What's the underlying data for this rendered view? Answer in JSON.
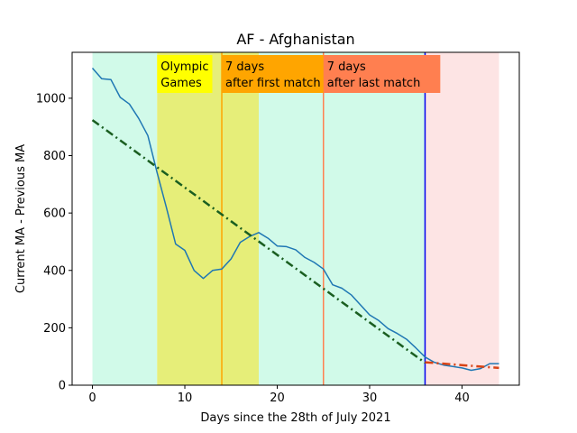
{
  "chart_data": {
    "type": "line",
    "title": "AF - Afghanistan",
    "xlabel": "Days since the 28th of July 2021",
    "ylabel": "Current MA - Previous MA",
    "xlim": [
      -2.2,
      46.2
    ],
    "ylim": [
      0,
      1160
    ],
    "xticks": [
      0,
      10,
      20,
      30,
      40
    ],
    "yticks": [
      0,
      200,
      400,
      600,
      800,
      1000
    ],
    "grid": false,
    "background_spans": [
      {
        "name": "before-olympics",
        "x0": 0,
        "x1": 7,
        "color": "#d1fae9"
      },
      {
        "name": "olympic-games",
        "x0": 7,
        "x1": 18,
        "color": "#e6ee79"
      },
      {
        "name": "after-olympics",
        "x0": 18,
        "x1": 36,
        "color": "#d1fae9"
      },
      {
        "name": "post-period",
        "x0": 36,
        "x1": 44,
        "color": "#fde4e4"
      }
    ],
    "vertical_lines": [
      {
        "name": "first-match-line",
        "x": 14,
        "color": "#ffa500"
      },
      {
        "name": "last-match-line",
        "x": 25,
        "color": "#ff7f50"
      },
      {
        "name": "cutoff-line",
        "x": 36,
        "color": "#0000ee"
      }
    ],
    "annotations": [
      {
        "name": "olympic-games-label",
        "x": 7,
        "lines": [
          "Olympic",
          "Games"
        ],
        "box_color": "#ffff00"
      },
      {
        "name": "first-match-label",
        "x": 14,
        "lines": [
          "7 days",
          "after first match"
        ],
        "box_color": "#ffa500"
      },
      {
        "name": "last-match-label",
        "x": 25,
        "lines": [
          "7 days",
          "after last match"
        ],
        "box_color": "#ff7f50"
      }
    ],
    "series": [
      {
        "color": "#1f77b4",
        "style": "solid",
        "x": [
          0,
          1,
          2,
          3,
          4,
          5,
          6,
          7,
          8,
          9,
          10,
          11,
          12,
          13,
          14,
          15,
          16,
          17,
          18,
          19,
          20,
          21,
          22,
          23,
          24,
          25,
          26,
          27,
          28,
          29,
          30,
          31,
          32,
          33,
          34,
          35,
          36,
          37,
          38,
          39,
          40,
          41,
          42,
          43,
          44
        ],
        "values": [
          1105,
          1068,
          1065,
          1003,
          980,
          930,
          870,
          740,
          620,
          492,
          470,
          400,
          372,
          400,
          405,
          440,
          498,
          518,
          532,
          512,
          485,
          483,
          472,
          445,
          428,
          405,
          350,
          338,
          315,
          280,
          245,
          225,
          197,
          180,
          160,
          130,
          98,
          80,
          70,
          65,
          60,
          52,
          58,
          75,
          75
        ]
      },
      {
        "color": "#1a5e20",
        "style": "dashdot",
        "x": [
          0,
          36
        ],
        "values": [
          924,
          78
        ]
      },
      {
        "color": "#d84315",
        "style": "dashdot",
        "x": [
          36,
          44
        ],
        "values": [
          80,
          60
        ]
      }
    ]
  }
}
